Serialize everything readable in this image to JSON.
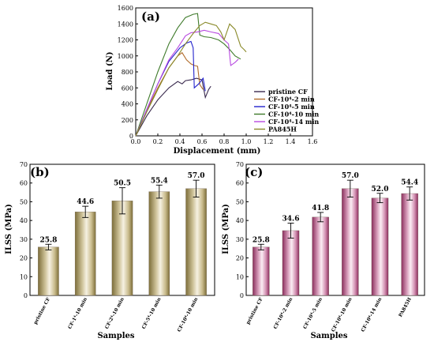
{
  "chart_data": [
    {
      "panel": "(a)",
      "type": "line",
      "xlabel": "Displacement (mm)",
      "ylabel": "Load (N)",
      "xlim": [
        0,
        1.6
      ],
      "ylim": [
        0,
        1600
      ],
      "xticks": [
        "0.0",
        "0.2",
        "0.4",
        "0.6",
        "0.8",
        "1.0",
        "1.2",
        "1.4",
        "1.6"
      ],
      "yticks": [
        "0",
        "200",
        "400",
        "600",
        "800",
        "1000",
        "1200",
        "1400",
        "1600"
      ],
      "legend_position": "bottom-right",
      "series": [
        {
          "name": "pristine CF",
          "color": "#3a2a4e",
          "points": [
            [
              0,
              0
            ],
            [
              0.1,
              250
            ],
            [
              0.2,
              450
            ],
            [
              0.3,
              600
            ],
            [
              0.38,
              680
            ],
            [
              0.42,
              650
            ],
            [
              0.45,
              690
            ],
            [
              0.5,
              700
            ],
            [
              0.55,
              720
            ],
            [
              0.6,
              700
            ],
            [
              0.63,
              480
            ],
            [
              0.66,
              580
            ],
            [
              0.68,
              620
            ]
          ]
        },
        {
          "name": "CF-10⁴-2 min",
          "color": "#b06b2b",
          "points": [
            [
              0,
              0
            ],
            [
              0.1,
              320
            ],
            [
              0.2,
              600
            ],
            [
              0.3,
              850
            ],
            [
              0.38,
              1000
            ],
            [
              0.42,
              1040
            ],
            [
              0.46,
              950
            ],
            [
              0.5,
              900
            ],
            [
              0.53,
              880
            ],
            [
              0.56,
              870
            ],
            [
              0.58,
              640
            ],
            [
              0.61,
              580
            ]
          ]
        },
        {
          "name": "CF-10⁴-5 min",
          "color": "#2222cc",
          "points": [
            [
              0,
              0
            ],
            [
              0.1,
              330
            ],
            [
              0.2,
              650
            ],
            [
              0.3,
              930
            ],
            [
              0.4,
              1100
            ],
            [
              0.46,
              1160
            ],
            [
              0.5,
              1180
            ],
            [
              0.52,
              1100
            ],
            [
              0.53,
              600
            ],
            [
              0.57,
              650
            ],
            [
              0.61,
              720
            ],
            [
              0.63,
              560
            ]
          ]
        },
        {
          "name": "CF-10⁴-10 min",
          "color": "#3e7a2a",
          "points": [
            [
              0,
              0
            ],
            [
              0.1,
              400
            ],
            [
              0.2,
              800
            ],
            [
              0.3,
              1150
            ],
            [
              0.38,
              1350
            ],
            [
              0.45,
              1480
            ],
            [
              0.52,
              1520
            ],
            [
              0.56,
              1530
            ],
            [
              0.58,
              1260
            ],
            [
              0.62,
              1240
            ],
            [
              0.68,
              1230
            ],
            [
              0.75,
              1200
            ],
            [
              0.8,
              1150
            ],
            [
              0.85,
              1080
            ],
            [
              0.9,
              1000
            ],
            [
              0.95,
              960
            ]
          ]
        },
        {
          "name": "CF-10⁴-14 min",
          "color": "#b84ae0",
          "points": [
            [
              0,
              0
            ],
            [
              0.1,
              330
            ],
            [
              0.2,
              650
            ],
            [
              0.3,
              950
            ],
            [
              0.38,
              1100
            ],
            [
              0.45,
              1250
            ],
            [
              0.5,
              1290
            ],
            [
              0.56,
              1300
            ],
            [
              0.62,
              1320
            ],
            [
              0.68,
              1300
            ],
            [
              0.75,
              1280
            ],
            [
              0.8,
              1200
            ],
            [
              0.84,
              1150
            ],
            [
              0.86,
              880
            ],
            [
              0.9,
              920
            ],
            [
              0.93,
              960
            ]
          ]
        },
        {
          "name": "PA845H",
          "color": "#8a8a2a",
          "points": [
            [
              0,
              0
            ],
            [
              0.1,
              300
            ],
            [
              0.2,
              580
            ],
            [
              0.3,
              850
            ],
            [
              0.38,
              1000
            ],
            [
              0.45,
              1150
            ],
            [
              0.52,
              1280
            ],
            [
              0.58,
              1380
            ],
            [
              0.63,
              1420
            ],
            [
              0.68,
              1400
            ],
            [
              0.73,
              1380
            ],
            [
              0.77,
              1300
            ],
            [
              0.8,
              1200
            ],
            [
              0.85,
              1400
            ],
            [
              0.9,
              1330
            ],
            [
              0.95,
              1120
            ],
            [
              0.98,
              1080
            ],
            [
              1.0,
              1050
            ]
          ]
        }
      ]
    },
    {
      "panel": "(b)",
      "type": "bar",
      "xlabel": "Samples",
      "ylabel": "ILSS (MPa)",
      "ylim": [
        0,
        70
      ],
      "yticks": [
        "0",
        "10",
        "20",
        "30",
        "40",
        "50",
        "60",
        "70"
      ],
      "categories": [
        "pristine CF",
        "CF-1⁴-10 min",
        "CF-2⁴-10 min",
        "CF-5⁴-10 min",
        "CF-10⁴-10 min"
      ],
      "values": [
        25.8,
        44.6,
        50.5,
        55.4,
        57.0
      ],
      "value_labels": [
        "25.8",
        "44.6",
        "50.5",
        "55.4",
        "57.0"
      ],
      "errors": [
        1.5,
        3.0,
        7.0,
        3.5,
        4.5
      ],
      "bar_color": "#b3a36a"
    },
    {
      "panel": "(c)",
      "type": "bar",
      "xlabel": "Samples",
      "ylabel": "ILSS (MPa)",
      "ylim": [
        0,
        70
      ],
      "yticks": [
        "0",
        "10",
        "20",
        "30",
        "40",
        "50",
        "60",
        "70"
      ],
      "categories": [
        "pristine CF",
        "CF-10⁴-2 min",
        "CF-10⁴-5 min",
        "CF-10⁴-10 min",
        "CF-10⁴-14 min",
        "PA845H"
      ],
      "values": [
        25.8,
        34.6,
        41.8,
        57.0,
        52.0,
        54.4
      ],
      "value_labels": [
        "25.8",
        "34.6",
        "41.8",
        "57.0",
        "52.0",
        "54.4"
      ],
      "errors": [
        1.5,
        4.0,
        2.5,
        4.5,
        2.5,
        3.5
      ],
      "bar_color": "#c26a94"
    }
  ]
}
